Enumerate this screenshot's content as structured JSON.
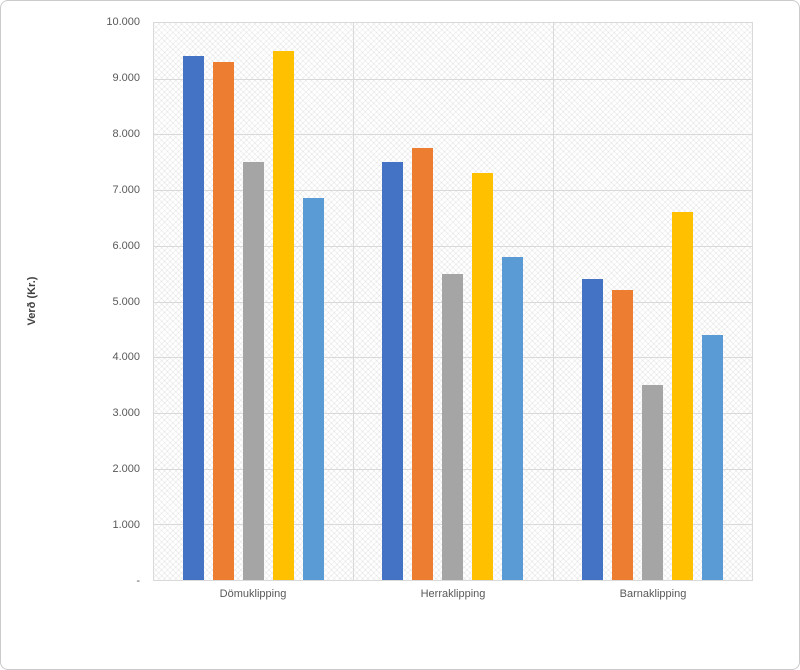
{
  "chart_data": {
    "type": "bar",
    "title": "",
    "xlabel": "",
    "ylabel": "Verð (Kr.)",
    "categories": [
      "Dömuklipping",
      "Herraklipping",
      "Barnaklipping"
    ],
    "series": [
      {
        "name": "series-blue",
        "color": "#4472C4",
        "values": [
          9400,
          7500,
          5400
        ]
      },
      {
        "name": "series-orange",
        "color": "#ED7D31",
        "values": [
          9300,
          7750,
          5200
        ]
      },
      {
        "name": "series-gray",
        "color": "#A5A5A5",
        "values": [
          7500,
          5500,
          3500
        ]
      },
      {
        "name": "series-yellow",
        "color": "#FFC000",
        "values": [
          9500,
          7300,
          6600
        ]
      },
      {
        "name": "series-lightblue",
        "color": "#5B9BD5",
        "values": [
          6850,
          5800,
          4400
        ]
      }
    ],
    "ylim": [
      0,
      10000
    ],
    "ytick_step": 1000,
    "ytick_labels": [
      "-",
      "1.000",
      "2.000",
      "3.000",
      "4.000",
      "5.000",
      "6.000",
      "7.000",
      "8.000",
      "9.000",
      "10.000"
    ],
    "legend": "none",
    "grid": true,
    "plot_background_pattern": "diagonal-crosshatch",
    "gridline_color": "#D9D9D9",
    "tick_label_color": "#595959"
  }
}
